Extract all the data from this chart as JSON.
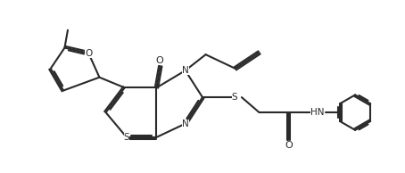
{
  "line_color": "#2a2a2a",
  "line_width": 1.5,
  "figsize": [
    4.54,
    1.94
  ],
  "dpi": 100,
  "xlim": [
    0,
    10
  ],
  "ylim": [
    0,
    4.3
  ]
}
